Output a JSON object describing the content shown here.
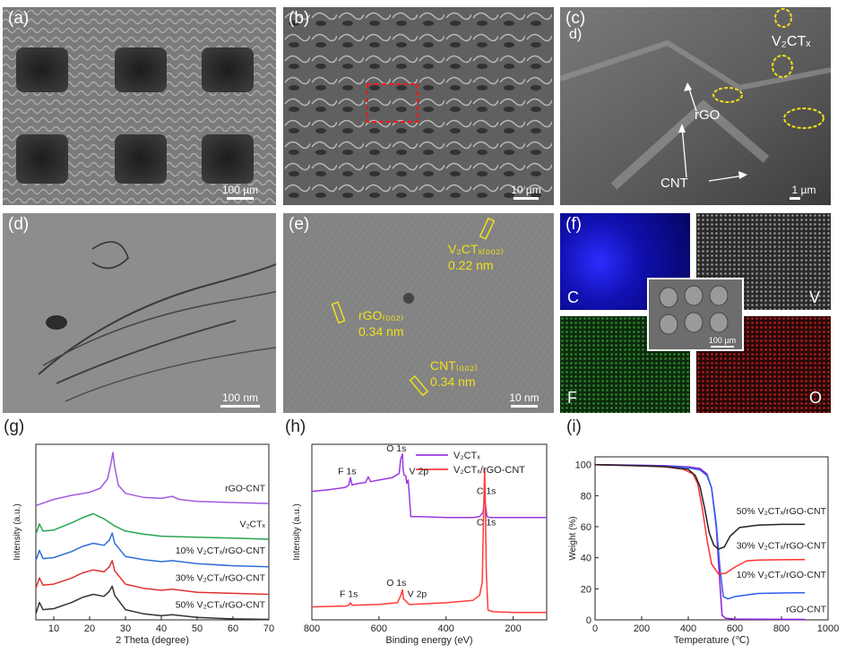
{
  "figure": {
    "panels": {
      "a": {
        "label": "(a)",
        "scale": "100 µm"
      },
      "b": {
        "label": "(b)",
        "scale": "10 µm"
      },
      "c": {
        "label": "(c)",
        "label2": "d)",
        "scale": "1 µm",
        "ann_v2ctx": "V₂CTₓ",
        "ann_rgo": "rGO",
        "ann_cnt": "CNT"
      },
      "d": {
        "label": "(d)",
        "scale": "100 nm"
      },
      "e": {
        "label": "(e)",
        "scale": "10 nm",
        "ann_v2ctx": "V₂CTₓ₍₀₀₂₎",
        "ann_v2ctx_d": "0.22 nm",
        "ann_rgo": "rGO₍₀₀₂₎",
        "ann_rgo_d": "0.34 nm",
        "ann_cnt": "CNT₍₀₀₂₎",
        "ann_cnt_d": "0.34 nm"
      },
      "f": {
        "label": "(f)",
        "maps": [
          "C",
          "V",
          "F",
          "O"
        ],
        "inset_scale": "100 µm"
      },
      "g": {
        "label": "(g)"
      },
      "h": {
        "label": "(h)"
      },
      "i": {
        "label": "(i)"
      }
    }
  },
  "chart_data": [
    {
      "type": "line",
      "panel": "g",
      "xlabel": "2 Theta (degree)",
      "ylabel": "Intensity (a.u.)",
      "xlim": [
        5,
        70
      ],
      "xticks": [
        10,
        20,
        30,
        40,
        50,
        60,
        70
      ],
      "series": [
        {
          "name": "rGO-CNT",
          "color": "#a05be0",
          "x": [
            5,
            10,
            15,
            20,
            23,
            25,
            26,
            26.5,
            27,
            28,
            30,
            35,
            40,
            43,
            45,
            50,
            60,
            70
          ],
          "y": [
            5.6,
            5.9,
            6.1,
            6.25,
            6.45,
            6.9,
            7.7,
            8.2,
            7.5,
            6.6,
            6.2,
            6.0,
            5.95,
            6.05,
            5.9,
            5.8,
            5.75,
            5.7
          ]
        },
        {
          "name": "V₂CTₓ",
          "color": "#27a552",
          "x": [
            5,
            6,
            7,
            10,
            15,
            18,
            21,
            24,
            27,
            30,
            35,
            40,
            50,
            60,
            70
          ],
          "y": [
            4.2,
            4.7,
            4.35,
            4.4,
            4.75,
            5.0,
            5.2,
            4.95,
            4.6,
            4.35,
            4.2,
            4.1,
            4.05,
            4.0,
            3.95
          ]
        },
        {
          "name": "10% V₂CTₓ/rGO-CNT",
          "color": "#2f6ed8",
          "x": [
            5,
            6,
            7,
            10,
            15,
            18,
            21,
            24,
            25.5,
            26.3,
            27,
            30,
            35,
            40,
            43,
            50,
            60,
            70
          ],
          "y": [
            2.9,
            3.4,
            3.0,
            3.05,
            3.35,
            3.6,
            3.75,
            3.65,
            3.9,
            4.25,
            3.75,
            3.1,
            2.95,
            2.85,
            2.9,
            2.75,
            2.65,
            2.6
          ]
        },
        {
          "name": "30% V₂CTₓ/rGO-CNT",
          "color": "#e03030",
          "x": [
            5,
            6,
            7,
            10,
            15,
            18,
            21,
            24,
            25.5,
            26.3,
            27,
            30,
            35,
            40,
            43,
            50,
            60,
            70
          ],
          "y": [
            1.55,
            2.05,
            1.7,
            1.75,
            2.05,
            2.3,
            2.45,
            2.35,
            2.6,
            2.9,
            2.4,
            1.75,
            1.55,
            1.45,
            1.5,
            1.35,
            1.3,
            1.25
          ]
        },
        {
          "name": "50% V₂CTₓ/rGO-CNT",
          "color": "#333333",
          "x": [
            5,
            6,
            7,
            10,
            15,
            18,
            21,
            24,
            25.5,
            26.3,
            27,
            30,
            35,
            40,
            43,
            50,
            60,
            70
          ],
          "y": [
            0.3,
            0.85,
            0.5,
            0.55,
            0.85,
            1.1,
            1.25,
            1.15,
            1.4,
            1.65,
            1.2,
            0.5,
            0.3,
            0.2,
            0.25,
            0.12,
            0.05,
            0.02
          ]
        }
      ],
      "labels": [
        "rGO-CNT",
        "V₂CTₓ",
        "10% V₂CTₓ/rGO-CNT",
        "30% V₂CTₓ/rGO-CNT",
        "50% V₂CTₓ/rGO-CNT"
      ]
    },
    {
      "type": "line",
      "panel": "h",
      "xlabel": "Binding energy (eV)",
      "ylabel": "Intensity (a.u.)",
      "xlim": [
        800,
        100
      ],
      "xticks": [
        800,
        600,
        400,
        200
      ],
      "series": [
        {
          "name": "V₂CTₓ",
          "color": "#9a3ae0",
          "x": [
            800,
            750,
            700,
            690,
            685,
            680,
            660,
            640,
            632,
            625,
            600,
            560,
            540,
            535,
            530,
            528,
            525,
            520,
            517,
            513,
            510,
            505,
            480,
            400,
            320,
            300,
            290,
            285,
            282,
            278,
            270,
            200,
            100
          ],
          "y": [
            7.9,
            8.0,
            8.15,
            8.3,
            8.75,
            8.3,
            8.4,
            8.45,
            8.8,
            8.5,
            8.6,
            8.75,
            9.0,
            9.9,
            10.2,
            9.3,
            8.9,
            8.85,
            8.4,
            8.6,
            7.85,
            6.35,
            6.35,
            6.3,
            6.3,
            6.35,
            6.6,
            7.5,
            7.0,
            6.35,
            6.3,
            6.3,
            6.3
          ]
        },
        {
          "name": "V₂CTₓ/rGO-CNT",
          "color": "#ff3b3b",
          "x": [
            800,
            700,
            690,
            685,
            680,
            600,
            545,
            535,
            530,
            527,
            522,
            515,
            510,
            500,
            400,
            320,
            300,
            292,
            288,
            285,
            283,
            280,
            275,
            260,
            200,
            100
          ],
          "y": [
            0.8,
            0.85,
            0.9,
            1.05,
            0.9,
            0.95,
            1.05,
            1.5,
            1.85,
            1.3,
            1.2,
            1.05,
            0.95,
            0.95,
            1.05,
            1.2,
            1.5,
            2.3,
            6.5,
            9.3,
            7.5,
            3.0,
            0.6,
            0.5,
            0.45,
            0.45
          ]
        }
      ],
      "legend": [
        "V₂CTₓ",
        "V₂CTₓ/rGO-CNT"
      ],
      "legend_position": "top-right",
      "annotations": [
        "F 1s",
        "O 1s",
        "V 2p",
        "C 1s",
        "F 1s",
        "O 1s",
        "V 2p",
        "C 1s"
      ]
    },
    {
      "type": "line",
      "panel": "i",
      "xlabel": "Temperature (℃)",
      "ylabel": "Weight (%)",
      "xlim": [
        0,
        1000
      ],
      "ylim": [
        0,
        105
      ],
      "xticks": [
        0,
        200,
        400,
        600,
        800,
        1000
      ],
      "yticks": [
        0,
        20,
        40,
        60,
        80,
        100
      ],
      "series": [
        {
          "name": "rGO-CNT",
          "color": "#8a1fd6",
          "x": [
            0,
            100,
            200,
            300,
            400,
            450,
            480,
            500,
            520,
            535,
            545,
            560,
            600,
            900
          ],
          "y": [
            100,
            99.8,
            99.6,
            99.3,
            98.5,
            97.5,
            94,
            85,
            60,
            25,
            3,
            1,
            0.5,
            0.3
          ]
        },
        {
          "name": "10% V₂CTₓ/rGO-CNT",
          "color": "#2f5ef0",
          "x": [
            0,
            100,
            200,
            300,
            400,
            450,
            480,
            500,
            520,
            535,
            550,
            570,
            600,
            700,
            800,
            900
          ],
          "y": [
            100,
            99.7,
            99.4,
            99,
            98,
            96.5,
            93,
            85,
            62,
            35,
            15,
            13.5,
            15,
            17,
            17.3,
            17.5
          ]
        },
        {
          "name": "30% V₂CTₓ/rGO-CNT",
          "color": "#ff3030",
          "x": [
            0,
            100,
            200,
            300,
            380,
            420,
            440,
            460,
            480,
            500,
            530,
            560,
            600,
            650,
            700,
            800,
            900
          ],
          "y": [
            100,
            99.6,
            99.2,
            98.5,
            97,
            94,
            88,
            72,
            52,
            36,
            29.5,
            30,
            34,
            38,
            38.5,
            38.7,
            38.8
          ]
        },
        {
          "name": "50% V₂CTₓ/rGO-CNT",
          "color": "#222222",
          "x": [
            0,
            100,
            200,
            300,
            400,
            430,
            450,
            470,
            490,
            510,
            530,
            555,
            580,
            620,
            700,
            800,
            900
          ],
          "y": [
            100,
            99.6,
            99.2,
            98.7,
            97,
            93,
            86,
            72,
            56,
            48,
            45.5,
            47,
            54,
            59.5,
            61,
            61.5,
            61.5
          ]
        }
      ],
      "labels": [
        "50% V₂CTₓ/rGO-CNT",
        "30% V₂CTₓ/rGO-CNT",
        "10% V₂CTₓ/rGO-CNT",
        "rGO-CNT"
      ]
    }
  ]
}
